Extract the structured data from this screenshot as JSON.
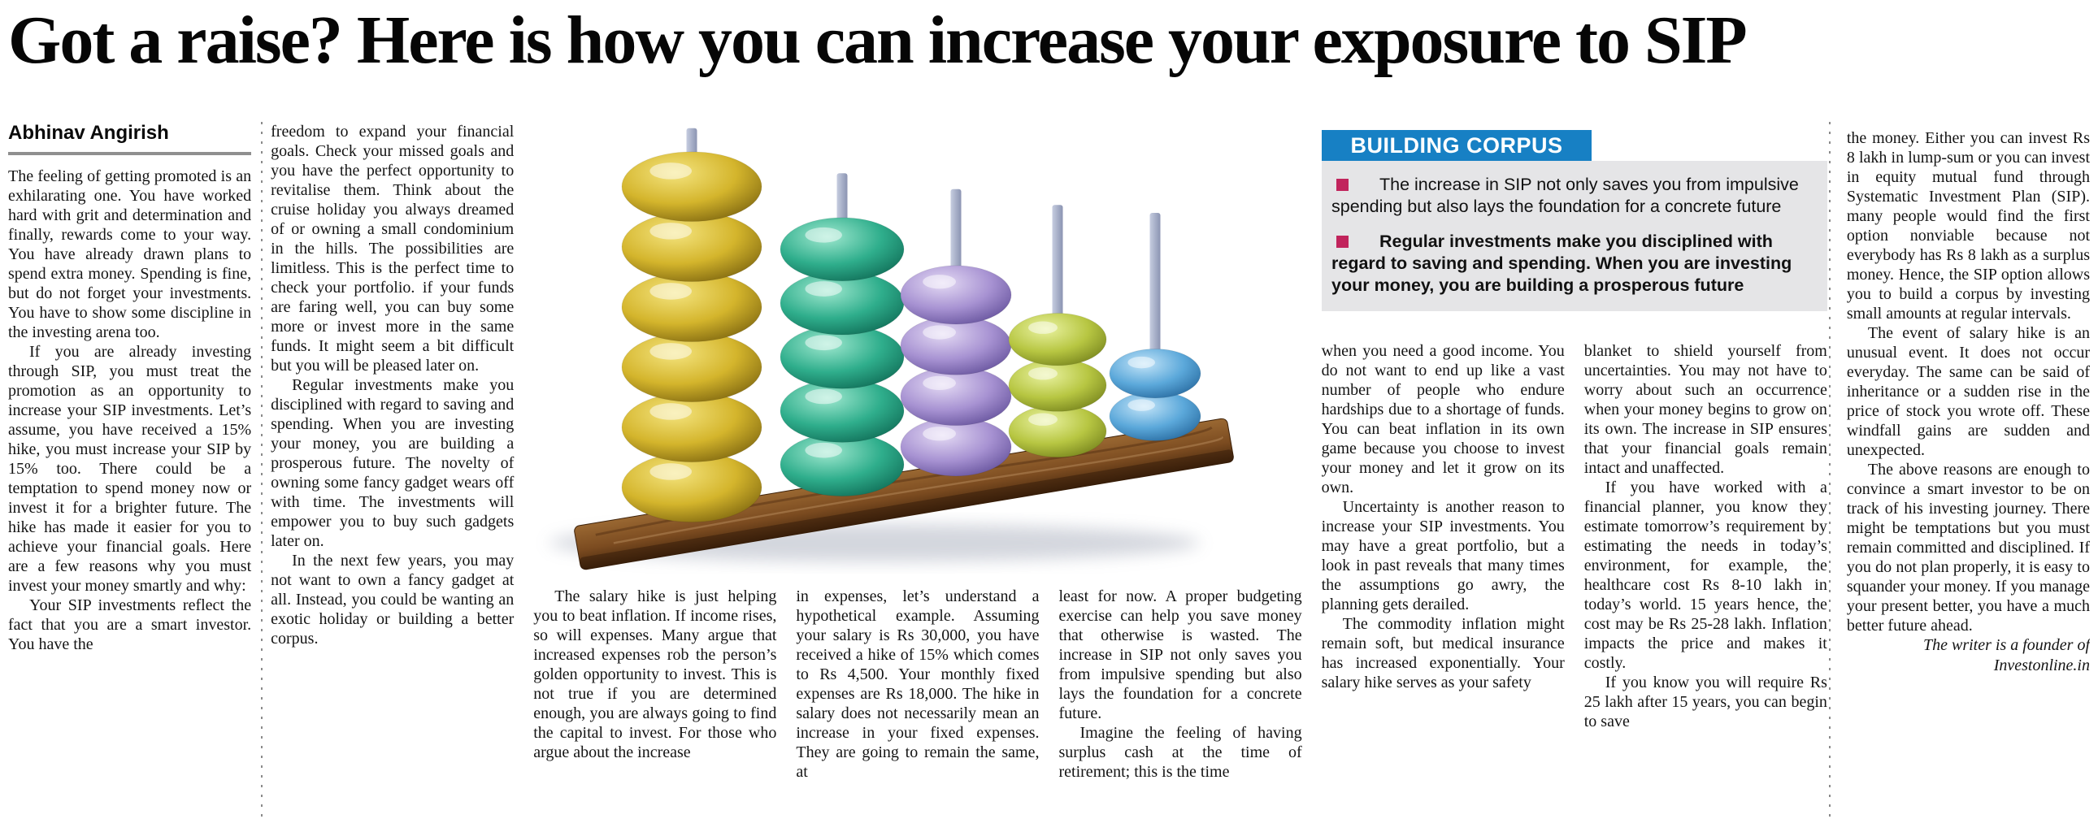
{
  "header": {
    "title": "Got a raise? Here is how you can increase your exposure to SIP",
    "byline": "Abhinav Angirish"
  },
  "columns": [
    {
      "paragraphs": [
        "The feeling of getting promoted is an exhilarating one. You have worked hard with grit and determination and finally, rewards come to your way. You have already drawn plans to spend extra money. Spending is fine, but do not forget your investments. You have to show some discipline in the investing arena too.",
        "If you are already investing through SIP, you must treat the promotion as an opportunity to increase your SIP investments. Let’s assume, you have received a 15% hike, you must increase your SIP by 15% too. There could be a temptation to spend money now or invest it for a brighter future. The hike has made it easier for you to achieve your financial goals. Here are a few reasons why you must invest your money smartly and why:",
        "Your SIP investments reflect the fact that you are a smart investor. You have the"
      ]
    },
    {
      "paragraphs": [
        "freedom to expand your financial goals. Check your missed goals and you have the perfect opportunity to revitalise them. Think about the cruise holiday you always dreamed of or owning a small condominium in the hills. The possibilities are limitless. This is the perfect time to check your portfolio. if your funds are faring well, you can buy some more or invest more in the same funds. It might seem a bit difficult but you will be pleased later on.",
        "Regular investments make you disciplined with regard to saving and spending. When you are investing your money, you are building a prosperous future. The novelty of owning some fancy gadget wears off with time. The investments will empower you to buy such gadgets later on.",
        "In the next few years, you may not want to own a fancy gadget at all. Instead, you could be wanting an exotic holiday or building a better corpus."
      ]
    },
    {
      "paragraphs": [
        "The salary hike is just helping you to beat inflation. If income rises, so will expenses. Many argue that increased expenses rob the person’s golden opportunity to invest. This is not true if you are determined enough, you are always going to find the capital to invest. For those who argue about the increase"
      ]
    },
    {
      "paragraphs": [
        "in expenses, let’s understand a hypothetical example. Assuming your salary is Rs 30,000, you have received a hike of 15% which comes to Rs 4,500. Your monthly fixed expenses are Rs 18,000. The hike in salary does not necessarily mean an increase in your fixed expenses. They are going to remain the same, at"
      ]
    },
    {
      "paragraphs": [
        "least for now. A proper budgeting exercise can help you save money that otherwise is wasted. The increase in SIP not only saves you from impulsive spending but also lays the foundation for a concrete future.",
        "Imagine the feeling of having surplus cash at the time of retirement; this is the time"
      ]
    },
    {
      "paragraphs": [
        "when you need a good income. You do not want to end up like a vast number of people who endure hardships due to a shortage of funds. You can beat inflation in its own game because you choose to invest your money and let it grow on its own.",
        "Uncertainty is another reason to increase your SIP investments. You may have a great portfolio, but a look in past reveals that many times the assumptions go awry, the planning gets derailed.",
        "The commodity inflation might remain soft, but medical insurance has increased exponentially. Your salary hike serves as your safety"
      ]
    },
    {
      "paragraphs": [
        "blanket to shield yourself from uncertainties. You may not have to worry about such an occurrence when your money begins to grow on its own. The increase in SIP ensures that your financial goals remain intact and unaffected.",
        "If you have worked with a financial planner, you know they estimate tomorrow’s requirement by estimating the needs in today’s environment, for example, the healthcare cost Rs 8-10 lakh in today’s world. 15 years hence, the cost may be Rs 25-28 lakh. Inflation impacts the price and makes it costly.",
        "If you know you will require Rs 25 lakh after 15 years, you can begin to save"
      ]
    },
    {
      "paragraphs": [
        "the money. Either you can invest Rs 8 lakh in lump-sum or you can invest in equity mutual fund through Systematic Investment Plan (SIP). many people would find the first option nonviable because not everybody has Rs 8 lakh as a surplus money. Hence, the SIP option allows you to build a corpus by investing small amounts at regular intervals.",
        "The event of salary hike is an unusual event. It does not occur everyday. The same can be said of inheritance or a sudden rise in the price of stock you wrote off. These windfall gains are sudden and unexpected.",
        "The above reasons are enough to convince a smart investor to be on track of his investing journey. There might be temptations but you must remain committed and disciplined. If you do not plan properly, it is easy to squander your money. If you manage your present better, you have a much better future ahead."
      ]
    }
  ],
  "credit": {
    "text": "The writer is a founder of Investonline.in"
  },
  "infobox": {
    "header_label": "BUILDING CORPUS",
    "header_color": "#1780c4",
    "body_color": "#e5e5e7",
    "bullet_color": "#c1245c",
    "bullets": [
      {
        "text": "The increase in SIP not only saves you from impulsive spending but also lays the foundation for a concrete future",
        "bold": false
      },
      {
        "text": "Regular investments make you disciplined with regard to saving and spending. When you are investing your money, you are building a prosperous future",
        "bold": true
      }
    ]
  },
  "abacus": {
    "description": "wooden abacus with five rods holding 6, 5, 4, 3 and 2 beads",
    "rods": [
      {
        "color_key": "yellow",
        "beads": 6
      },
      {
        "color_key": "teal",
        "beads": 5
      },
      {
        "color_key": "purple",
        "beads": 4
      },
      {
        "color_key": "lime",
        "beads": 3
      },
      {
        "color_key": "blue",
        "beads": 2
      }
    ],
    "colors": {
      "yellow": {
        "hi": "#f4e47e",
        "main": "#d4b52c",
        "dark": "#7d650f"
      },
      "teal": {
        "hi": "#9fe8cf",
        "main": "#2fae8c",
        "dark": "#0f6b55"
      },
      "purple": {
        "hi": "#e4daf4",
        "main": "#a792d2",
        "dark": "#63509a"
      },
      "lime": {
        "hi": "#e9f2a0",
        "main": "#b7c642",
        "dark": "#75821c"
      },
      "blue": {
        "hi": "#c3e4f8",
        "main": "#5ba8da",
        "dark": "#26689d"
      }
    },
    "rod_colors": {
      "light": "#c6cde0",
      "dark": "#8b94b2"
    },
    "base_colors": {
      "light": "#9a6832",
      "main": "#7b4b20",
      "dark": "#47280d"
    }
  }
}
